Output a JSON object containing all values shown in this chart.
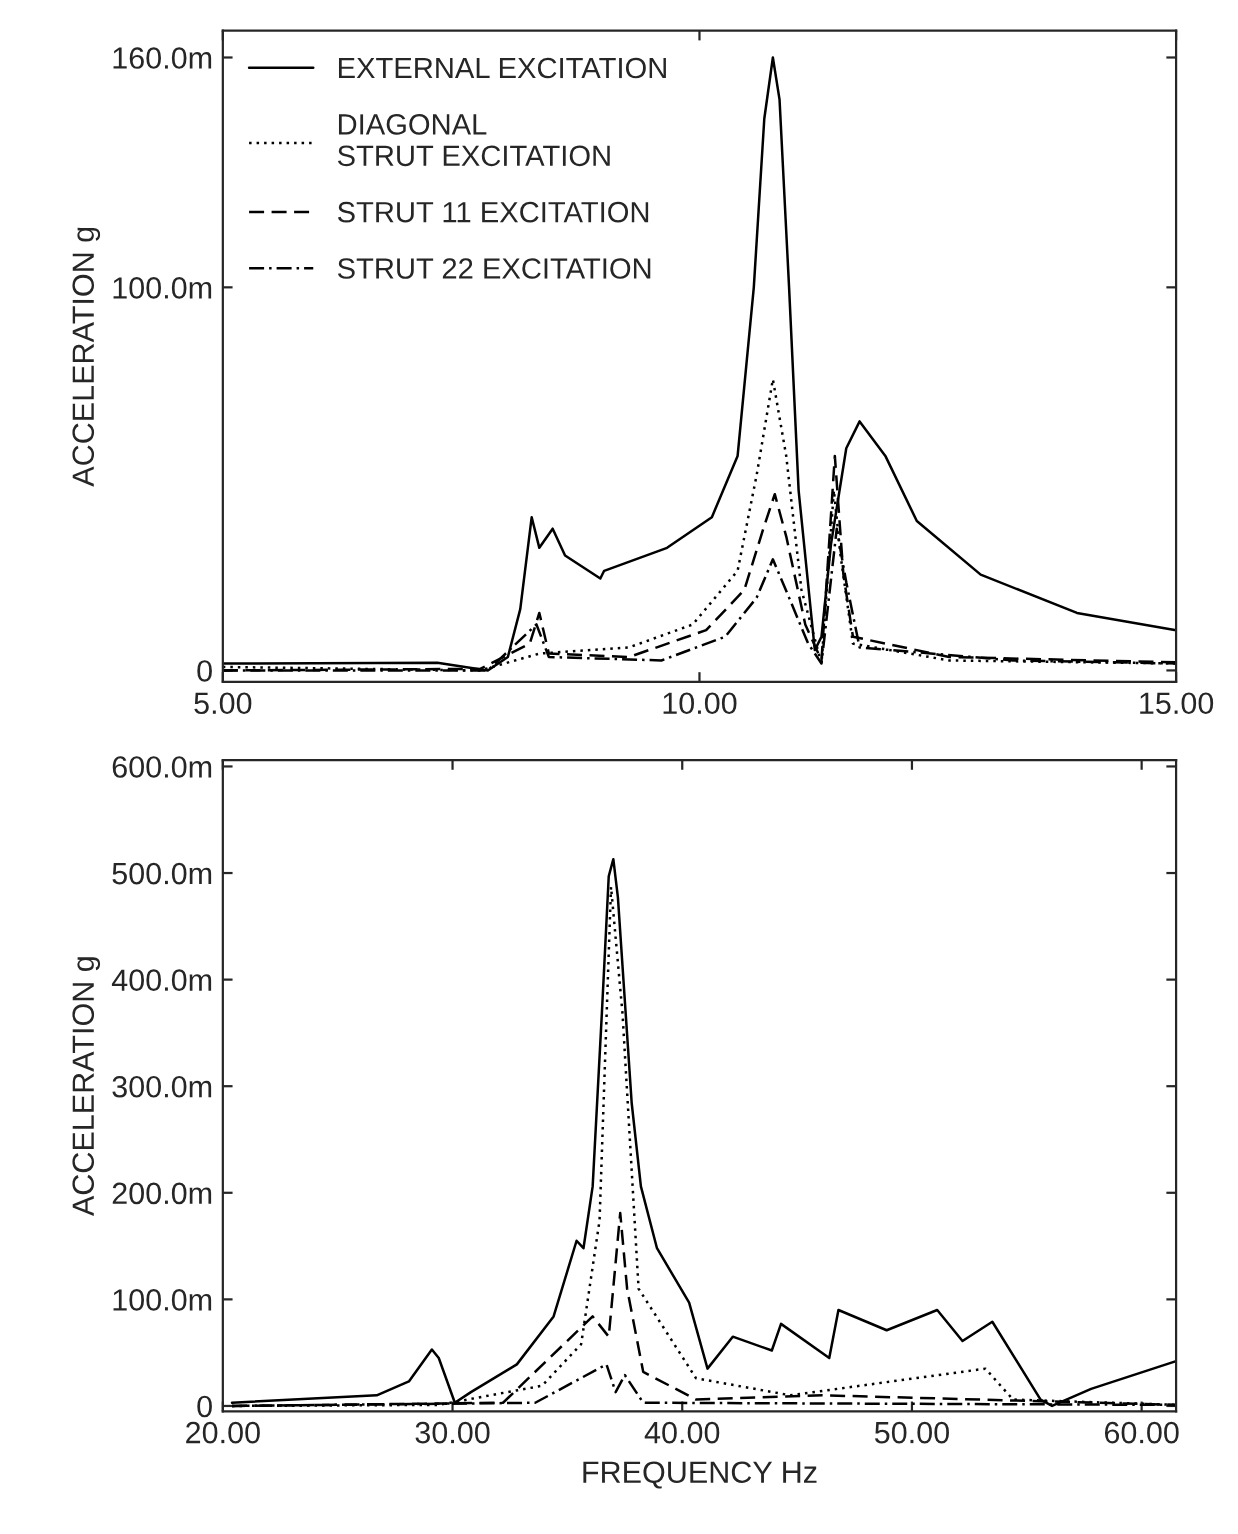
{
  "chart_data": [
    {
      "type": "line",
      "ylabel": "ACCELERATION g",
      "xlim": [
        5,
        15
      ],
      "xticks": [
        {
          "value": 5,
          "label": "5.00"
        },
        {
          "value": 10,
          "label": "10.00"
        },
        {
          "value": 15,
          "label": "15.00"
        }
      ],
      "ylim": [
        -3,
        167
      ],
      "yticks": [
        0,
        {
          "value": 100,
          "label": "100.0m"
        },
        {
          "value": 160,
          "label": "160.0m"
        }
      ],
      "legend": "top left",
      "grid": false,
      "series": [
        {
          "name": "EXTERNAL EXCITATION",
          "color": "#000000",
          "line_style": "solid",
          "x": [
            5,
            7.25,
            7.78,
            7.99,
            8.12,
            8.24,
            8.32,
            8.46,
            8.59,
            8.96,
            9.0,
            9.66,
            10.13,
            10.4,
            10.57,
            10.68,
            10.77,
            10.84,
            10.94,
            11.04,
            11.21,
            11.28,
            11.38,
            11.54,
            11.68,
            11.95,
            12.28,
            12.95,
            13.96,
            15
          ],
          "values": [
            1.8,
            2,
            0,
            3.5,
            16,
            40,
            32,
            37,
            30,
            24,
            26,
            32,
            40,
            56,
            100,
            144,
            160,
            149,
            100,
            47,
            5.3,
            8.8,
            33,
            58,
            65,
            56,
            39,
            25,
            15,
            10.5
          ]
        },
        {
          "name": "DIAGONAL\nSTRUT EXCITATION",
          "color": "#000000",
          "line_style": "dotted",
          "x": [
            5,
            7.7,
            8.32,
            9.26,
            9.93,
            10.4,
            10.6,
            10.77,
            10.91,
            11.07,
            11.28,
            11.41,
            11.48,
            11.61,
            12.62,
            15
          ],
          "values": [
            0.9,
            0,
            4.4,
            6,
            12,
            26,
            51,
            76,
            56,
            21,
            1.8,
            47,
            30,
            7,
            2.6,
            1.8
          ]
        },
        {
          "name": "STRUT 11 EXCITATION",
          "color": "#000000",
          "line_style": "dashed",
          "x": [
            5,
            7.7,
            8.22,
            8.32,
            8.42,
            9.26,
            10.07,
            10.47,
            10.67,
            10.79,
            10.91,
            11.11,
            11.28,
            11.42,
            11.51,
            11.61,
            12.62,
            15
          ],
          "values": [
            0,
            0.4,
            7,
            15,
            4.4,
            3.5,
            10.5,
            21,
            37,
            46,
            35,
            12,
            2.6,
            56,
            25,
            8.8,
            3.5,
            2.1
          ]
        },
        {
          "name": "STRUT 22 EXCITATION",
          "color": "#000000",
          "line_style": "dashdot",
          "x": [
            5,
            7.78,
            8.29,
            8.42,
            9.6,
            10.27,
            10.6,
            10.77,
            10.94,
            11.14,
            11.28,
            11.44,
            11.54,
            11.68,
            13.29,
            15
          ],
          "values": [
            0,
            0,
            12,
            3.5,
            2.6,
            8.8,
            19,
            29,
            19,
            7,
            1.8,
            37,
            23,
            6,
            2.6,
            1.8
          ]
        }
      ]
    },
    {
      "type": "line",
      "xlabel": "FREQUENCY Hz",
      "ylabel": "ACCELERATION g",
      "xlim": [
        20,
        61.5
      ],
      "xticks": [
        {
          "value": 20,
          "label": "20.00"
        },
        {
          "value": 30,
          "label": "30.00"
        },
        {
          "value": 40,
          "label": "40.00"
        },
        {
          "value": 50,
          "label": "50.00"
        },
        {
          "value": 60,
          "label": "60.00"
        }
      ],
      "ylim": [
        -5,
        606
      ],
      "yticks": [
        0,
        {
          "value": 100,
          "label": "100.0m"
        },
        {
          "value": 200,
          "label": "200.0m"
        },
        {
          "value": 300,
          "label": "300.0m"
        },
        {
          "value": 400,
          "label": "400.0m"
        },
        {
          "value": 500,
          "label": "500.0m"
        },
        {
          "value": 600,
          "label": "600.0m"
        }
      ],
      "grid": false,
      "series": [
        {
          "color": "#000000",
          "line_style": "solid",
          "x": [
            20.4,
            26.7,
            28.1,
            29.1,
            29.4,
            30.1,
            30.8,
            32.8,
            34.4,
            35.4,
            35.7,
            36.1,
            36.5,
            36.8,
            37.0,
            37.2,
            37.8,
            38.2,
            38.9,
            40.3,
            41.1,
            42.2,
            43.9,
            44.3,
            46.4,
            46.8,
            48.9,
            51.1,
            52.2,
            53.5,
            55.6,
            56.1,
            57.8,
            61.5
          ],
          "values": [
            3,
            10,
            23,
            53,
            45,
            3,
            13,
            39,
            84,
            155,
            148,
            206,
            368,
            497,
            513,
            477,
            284,
            206,
            148,
            97,
            35,
            65,
            52,
            77,
            45,
            90,
            71,
            90,
            61,
            79,
            6,
            0,
            16,
            42
          ]
        },
        {
          "color": "#000000",
          "line_style": "dotted",
          "x": [
            20.4,
            29.4,
            33.9,
            35.6,
            36.4,
            36.9,
            37.4,
            38.1,
            40.6,
            44.7,
            53.2,
            54.4,
            61.5
          ],
          "values": [
            0,
            1,
            19,
            58,
            174,
            487,
            368,
            110,
            26,
            10,
            35,
            6,
            1
          ]
        },
        {
          "color": "#000000",
          "line_style": "dashed",
          "x": [
            20.4,
            32.2,
            36.1,
            36.8,
            37.3,
            37.6,
            38.3,
            40.6,
            46.1,
            61.5
          ],
          "values": [
            0,
            3,
            84,
            65,
            181,
            110,
            32,
            6,
            10,
            1
          ]
        },
        {
          "color": "#000000",
          "line_style": "dashdot",
          "x": [
            20.4,
            33.6,
            36.7,
            37.1,
            37.5,
            38.3,
            61.5
          ],
          "values": [
            0,
            3,
            39,
            13,
            29,
            3,
            1
          ]
        }
      ]
    }
  ]
}
